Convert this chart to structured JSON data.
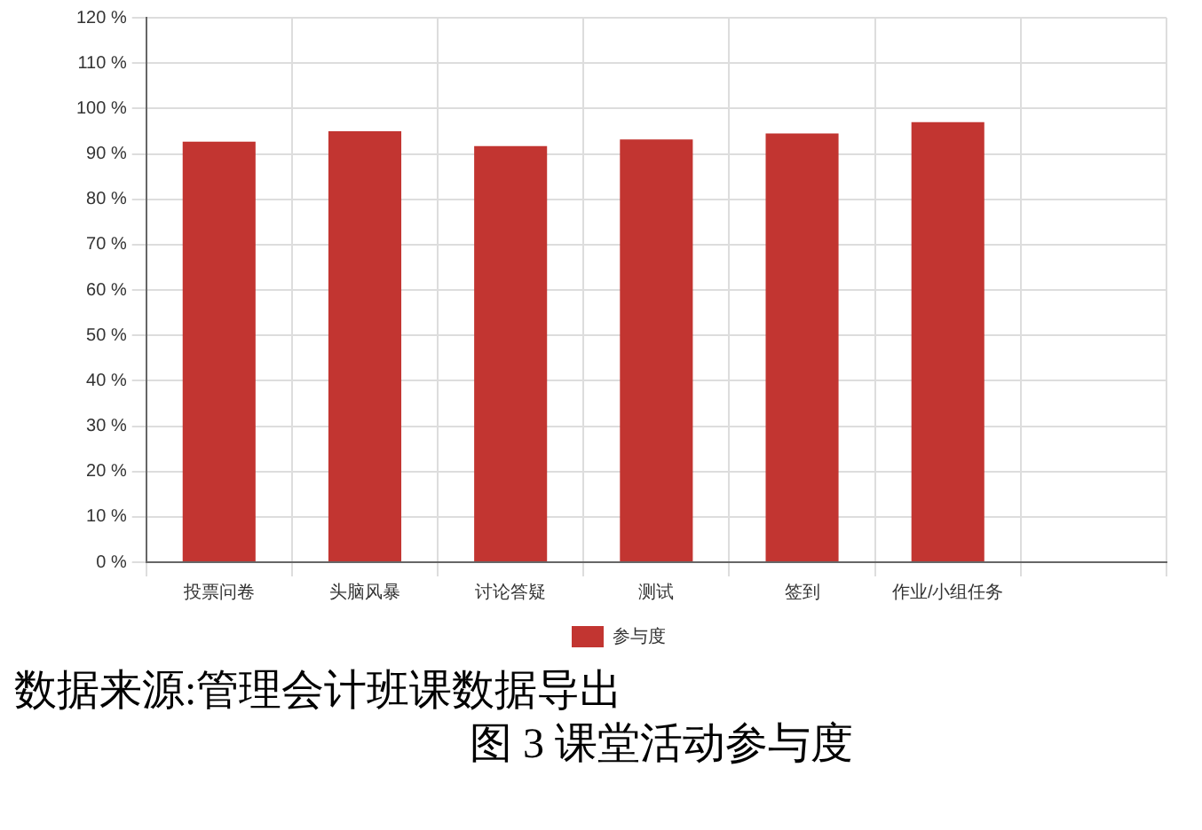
{
  "chart_data": {
    "type": "bar",
    "title": "图 3 课堂活动参与度",
    "annotations": [
      "数据来源:管理会计班课数据导出"
    ],
    "categories": [
      "投票问卷",
      "头脑风暴",
      "讨论答疑",
      "测试",
      "签到",
      "作业/小组任务",
      null
    ],
    "series": [
      {
        "name": "参与度",
        "color": "#c23531",
        "values": [
          92.7,
          95,
          91.7,
          93.2,
          94.5,
          97,
          null
        ]
      }
    ],
    "ylim": [
      0,
      120
    ],
    "yticks": [
      {
        "value": 0,
        "label": "0 %"
      },
      {
        "value": 10,
        "label": "10 %"
      },
      {
        "value": 20,
        "label": "20 %"
      },
      {
        "value": 30,
        "label": "30 %"
      },
      {
        "value": 40,
        "label": "40 %"
      },
      {
        "value": 50,
        "label": "50 %"
      },
      {
        "value": 60,
        "label": "60 %"
      },
      {
        "value": 70,
        "label": "70 %"
      },
      {
        "value": 80,
        "label": "80 %"
      },
      {
        "value": 90,
        "label": "90 %"
      },
      {
        "value": 100,
        "label": "100 %"
      },
      {
        "value": 110,
        "label": "110 %"
      },
      {
        "value": 120,
        "label": "120 %"
      }
    ],
    "grid": true,
    "legend": "bottom"
  }
}
